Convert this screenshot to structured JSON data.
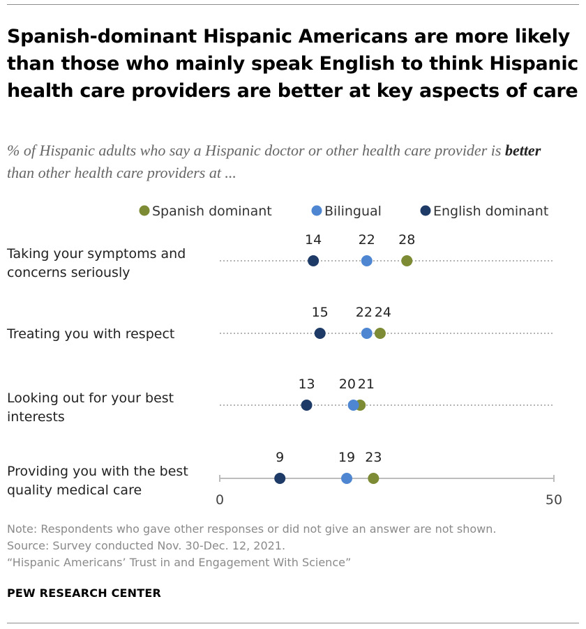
{
  "header": {
    "title": "Spanish-dominant Hispanic Americans are more likely than those who mainly speak English to think Hispanic health care providers are better at key aspects of care",
    "subtitle_before": "% of Hispanic adults who say a Hispanic doctor or other health care provider is ",
    "subtitle_emphasis": "better",
    "subtitle_after": " than other health care providers at ..."
  },
  "chart_data": {
    "type": "scatter",
    "subtype": "dot plot",
    "categories": [
      "Taking your symptoms and concerns seriously",
      "Treating you with respect",
      "Looking out for your best interests",
      "Providing you with the best quality medical care"
    ],
    "series": [
      {
        "name": "Spanish dominant",
        "color": "#7c8b34",
        "values": [
          28,
          24,
          21,
          23
        ]
      },
      {
        "name": "Bilingual",
        "color": "#4f86d1",
        "values": [
          22,
          22,
          20,
          19
        ]
      },
      {
        "name": "English dominant",
        "color": "#1e3a66",
        "values": [
          14,
          15,
          13,
          9
        ]
      }
    ],
    "xlim": [
      0,
      50
    ],
    "x_ticks": [
      "0",
      "50"
    ],
    "legend_position": "top-right"
  },
  "footer": {
    "note": "Note: Respondents who gave other responses or did not give an answer are not shown.",
    "source": "Source: Survey conducted Nov. 30-Dec. 12, 2021.",
    "report": "“Hispanic Americans’ Trust in and Engagement With Science”",
    "brand": "PEW RESEARCH CENTER"
  }
}
